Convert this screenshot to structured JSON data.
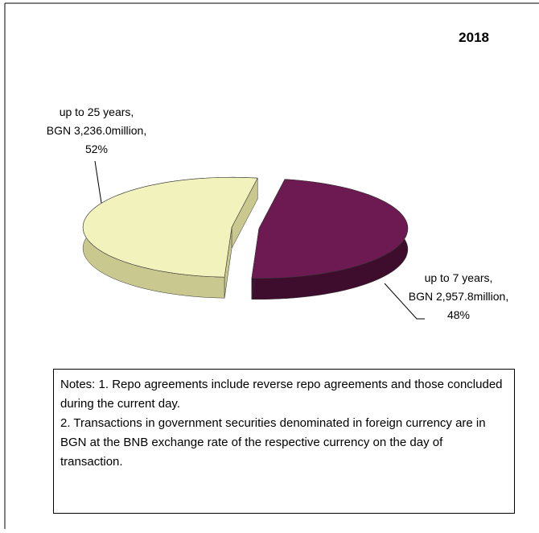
{
  "chart_data": {
    "type": "pie3d",
    "title": "2018",
    "categories": [
      "up to 25 years,",
      "up to 7 years,"
    ],
    "amount_labels": [
      "BGN 3,236.0million,",
      "BGN 2,957.8million,"
    ],
    "values": [
      52,
      48
    ],
    "value_labels": [
      "52%",
      "48%"
    ],
    "colors": [
      "#f2f2bc",
      "#6e1a52"
    ],
    "side_colors": [
      "#c9c98f",
      "#3e0d2d"
    ],
    "notes": [
      "Notes: 1. Repo agreements include reverse repo agreements and those concluded during the current day.",
      "2. Transactions in government securities denominated in foreign currency are in BGN at the BNB exchange rate of the respective currency on the day of transaction."
    ]
  }
}
